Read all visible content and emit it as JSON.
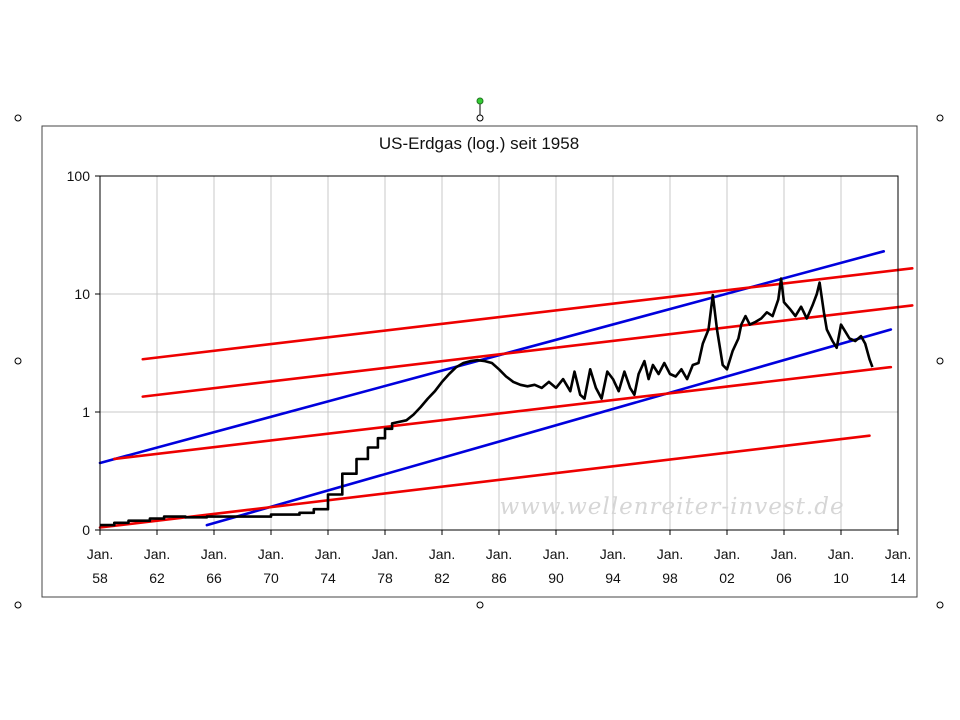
{
  "chart_data": {
    "type": "line",
    "title": "US-Erdgas (log.) seit 1958",
    "watermark": "www.wellenreiter-invest.de",
    "yscale": "log",
    "ylim": [
      0.1,
      100
    ],
    "xlim": [
      1958,
      2014
    ],
    "y_ticks": [
      {
        "value": 0.1,
        "label": "0"
      },
      {
        "value": 1,
        "label": "1"
      },
      {
        "value": 10,
        "label": "10"
      },
      {
        "value": 100,
        "label": "100"
      }
    ],
    "x_ticks": [
      {
        "year": 1958,
        "line1": "Jan.",
        "line2": "58"
      },
      {
        "year": 1962,
        "line1": "Jan.",
        "line2": "62"
      },
      {
        "year": 1966,
        "line1": "Jan.",
        "line2": "66"
      },
      {
        "year": 1970,
        "line1": "Jan.",
        "line2": "70"
      },
      {
        "year": 1974,
        "line1": "Jan.",
        "line2": "74"
      },
      {
        "year": 1978,
        "line1": "Jan.",
        "line2": "78"
      },
      {
        "year": 1982,
        "line1": "Jan.",
        "line2": "82"
      },
      {
        "year": 1986,
        "line1": "Jan.",
        "line2": "86"
      },
      {
        "year": 1990,
        "line1": "Jan.",
        "line2": "90"
      },
      {
        "year": 1994,
        "line1": "Jan.",
        "line2": "94"
      },
      {
        "year": 1998,
        "line1": "Jan.",
        "line2": "98"
      },
      {
        "year": 2002,
        "line1": "Jan.",
        "line2": "02"
      },
      {
        "year": 2006,
        "line1": "Jan.",
        "line2": "06"
      },
      {
        "year": 2010,
        "line1": "Jan.",
        "line2": "10"
      },
      {
        "year": 2014,
        "line1": "Jan.",
        "line2": "14"
      }
    ],
    "grid": true,
    "series": [
      {
        "name": "US-Erdgas",
        "color": "#000000",
        "points": [
          [
            1958.0,
            0.11
          ],
          [
            1959.0,
            0.11
          ],
          [
            1959.0,
            0.115
          ],
          [
            1960.0,
            0.115
          ],
          [
            1960.0,
            0.12
          ],
          [
            1961.5,
            0.12
          ],
          [
            1961.5,
            0.125
          ],
          [
            1962.5,
            0.125
          ],
          [
            1962.5,
            0.13
          ],
          [
            1964.0,
            0.13
          ],
          [
            1964.0,
            0.128
          ],
          [
            1965.5,
            0.128
          ],
          [
            1965.5,
            0.13
          ],
          [
            1967.0,
            0.13
          ],
          [
            1970.0,
            0.13
          ],
          [
            1970.0,
            0.135
          ],
          [
            1972.0,
            0.135
          ],
          [
            1972.0,
            0.14
          ],
          [
            1973.0,
            0.14
          ],
          [
            1973.0,
            0.15
          ],
          [
            1974.0,
            0.15
          ],
          [
            1974.0,
            0.2
          ],
          [
            1975.0,
            0.2
          ],
          [
            1975.0,
            0.3
          ],
          [
            1976.0,
            0.3
          ],
          [
            1976.0,
            0.4
          ],
          [
            1976.8,
            0.4
          ],
          [
            1976.8,
            0.5
          ],
          [
            1977.5,
            0.5
          ],
          [
            1977.5,
            0.6
          ],
          [
            1978.0,
            0.6
          ],
          [
            1978.0,
            0.72
          ],
          [
            1978.5,
            0.72
          ],
          [
            1978.5,
            0.8
          ],
          [
            1979.5,
            0.85
          ],
          [
            1980.0,
            0.95
          ],
          [
            1980.5,
            1.1
          ],
          [
            1981.0,
            1.3
          ],
          [
            1981.5,
            1.5
          ],
          [
            1982.0,
            1.8
          ],
          [
            1982.5,
            2.1
          ],
          [
            1983.0,
            2.4
          ],
          [
            1983.5,
            2.6
          ],
          [
            1984.0,
            2.7
          ],
          [
            1984.5,
            2.75
          ],
          [
            1985.0,
            2.7
          ],
          [
            1985.5,
            2.6
          ],
          [
            1986.0,
            2.3
          ],
          [
            1986.5,
            2.0
          ],
          [
            1987.0,
            1.8
          ],
          [
            1987.5,
            1.7
          ],
          [
            1988.0,
            1.65
          ],
          [
            1988.5,
            1.7
          ],
          [
            1989.0,
            1.6
          ],
          [
            1989.5,
            1.8
          ],
          [
            1990.0,
            1.6
          ],
          [
            1990.5,
            1.9
          ],
          [
            1991.0,
            1.5
          ],
          [
            1991.3,
            2.2
          ],
          [
            1991.7,
            1.4
          ],
          [
            1992.0,
            1.3
          ],
          [
            1992.4,
            2.3
          ],
          [
            1992.8,
            1.6
          ],
          [
            1993.2,
            1.3
          ],
          [
            1993.6,
            2.2
          ],
          [
            1994.0,
            1.9
          ],
          [
            1994.4,
            1.5
          ],
          [
            1994.8,
            2.2
          ],
          [
            1995.2,
            1.6
          ],
          [
            1995.5,
            1.4
          ],
          [
            1995.8,
            2.1
          ],
          [
            1996.2,
            2.7
          ],
          [
            1996.5,
            1.9
          ],
          [
            1996.8,
            2.5
          ],
          [
            1997.2,
            2.1
          ],
          [
            1997.6,
            2.6
          ],
          [
            1998.0,
            2.1
          ],
          [
            1998.4,
            2.0
          ],
          [
            1998.8,
            2.3
          ],
          [
            1999.2,
            1.9
          ],
          [
            1999.6,
            2.5
          ],
          [
            2000.0,
            2.6
          ],
          [
            2000.3,
            3.8
          ],
          [
            2000.7,
            5.0
          ],
          [
            2001.0,
            9.8
          ],
          [
            2001.3,
            5.0
          ],
          [
            2001.7,
            2.5
          ],
          [
            2002.0,
            2.3
          ],
          [
            2002.4,
            3.3
          ],
          [
            2002.8,
            4.2
          ],
          [
            2003.0,
            5.5
          ],
          [
            2003.3,
            6.5
          ],
          [
            2003.6,
            5.5
          ],
          [
            2004.0,
            5.8
          ],
          [
            2004.4,
            6.2
          ],
          [
            2004.8,
            7.0
          ],
          [
            2005.2,
            6.5
          ],
          [
            2005.6,
            9.0
          ],
          [
            2005.8,
            13.5
          ],
          [
            2006.0,
            8.5
          ],
          [
            2006.4,
            7.5
          ],
          [
            2006.8,
            6.5
          ],
          [
            2007.2,
            7.8
          ],
          [
            2007.6,
            6.2
          ],
          [
            2008.0,
            8.0
          ],
          [
            2008.3,
            10.0
          ],
          [
            2008.5,
            12.5
          ],
          [
            2008.8,
            7.0
          ],
          [
            2009.0,
            5.0
          ],
          [
            2009.4,
            4.0
          ],
          [
            2009.7,
            3.5
          ],
          [
            2010.0,
            5.5
          ],
          [
            2010.3,
            4.8
          ],
          [
            2010.6,
            4.2
          ],
          [
            2011.0,
            4.0
          ],
          [
            2011.4,
            4.4
          ],
          [
            2011.7,
            3.8
          ],
          [
            2012.0,
            2.8
          ],
          [
            2012.2,
            2.4
          ]
        ]
      }
    ],
    "trend_lines": [
      {
        "name": "blue-upper",
        "color": "#0000dd",
        "from": [
          1958.0,
          0.37
        ],
        "to": [
          2013.0,
          23.0
        ]
      },
      {
        "name": "blue-lower",
        "color": "#0000dd",
        "from": [
          1965.5,
          0.11
        ],
        "to": [
          2013.5,
          5.0
        ]
      },
      {
        "name": "red-1",
        "color": "#ee0000",
        "from": [
          1961.0,
          2.8
        ],
        "to": [
          2015.0,
          16.5
        ]
      },
      {
        "name": "red-2",
        "color": "#ee0000",
        "from": [
          1961.0,
          1.35
        ],
        "to": [
          2015.0,
          8.0
        ]
      },
      {
        "name": "red-3",
        "color": "#ee0000",
        "from": [
          1959.0,
          0.4
        ],
        "to": [
          2013.5,
          2.4
        ]
      },
      {
        "name": "red-4",
        "color": "#ee0000",
        "from": [
          1958.0,
          0.105
        ],
        "to": [
          2012.0,
          0.63
        ]
      }
    ]
  }
}
